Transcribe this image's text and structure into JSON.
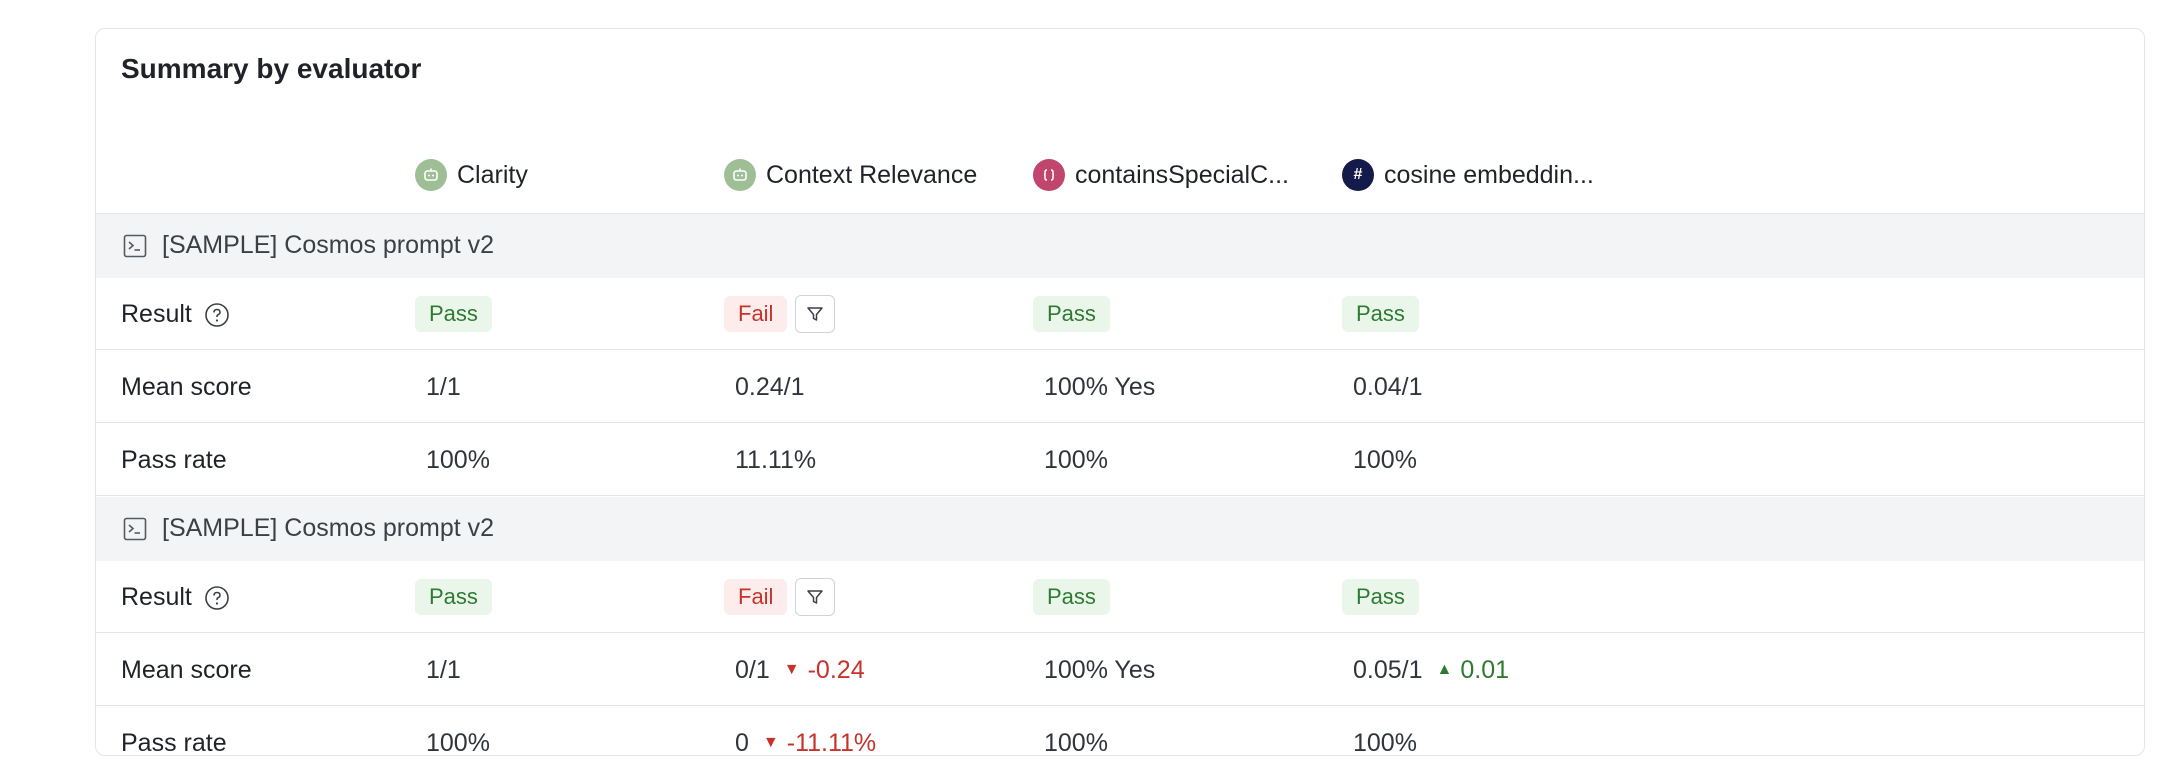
{
  "title": "Summary by evaluator",
  "colors": {
    "pass_bg": "#eaf6ea",
    "pass_text": "#2f7a33",
    "fail_bg": "#fdecec",
    "fail_text": "#c5332b",
    "llm_icon": "#9ebf95",
    "code_icon": "#c0466e",
    "number_icon": "#141a4a"
  },
  "evaluators": [
    {
      "name": "Clarity",
      "icon": "robot-icon"
    },
    {
      "name": "Context Relevance",
      "icon": "robot-icon"
    },
    {
      "name": "containsSpecialC...",
      "icon": "code-braces-icon"
    },
    {
      "name": "cosine embeddin...",
      "icon": "hash-icon",
      "glyph": "#"
    }
  ],
  "groups": [
    {
      "label": "[SAMPLE] Cosmos prompt v2",
      "result_label": "Result",
      "mean_label": "Mean score",
      "pass_label": "Pass rate",
      "results": [
        "Pass",
        "Fail",
        "Pass",
        "Pass"
      ],
      "mean": [
        "1/1",
        "0.24/1",
        "100% Yes",
        "0.04/1"
      ],
      "pass": [
        "100%",
        "11.11%",
        "100%",
        "100%"
      ]
    },
    {
      "label": "[SAMPLE] Cosmos prompt v2",
      "result_label": "Result",
      "mean_label": "Mean score",
      "pass_label": "Pass rate",
      "results": [
        "Pass",
        "Fail",
        "Pass",
        "Pass"
      ],
      "mean": [
        "1/1",
        "0/1",
        "100% Yes",
        "0.05/1"
      ],
      "mean_delta": {
        "context_relevance": "-0.24",
        "cosine": "0.01"
      },
      "pass": [
        "100%",
        "0",
        "100%",
        "100%"
      ],
      "pass_delta": {
        "context_relevance": "-11.11%"
      }
    }
  ]
}
